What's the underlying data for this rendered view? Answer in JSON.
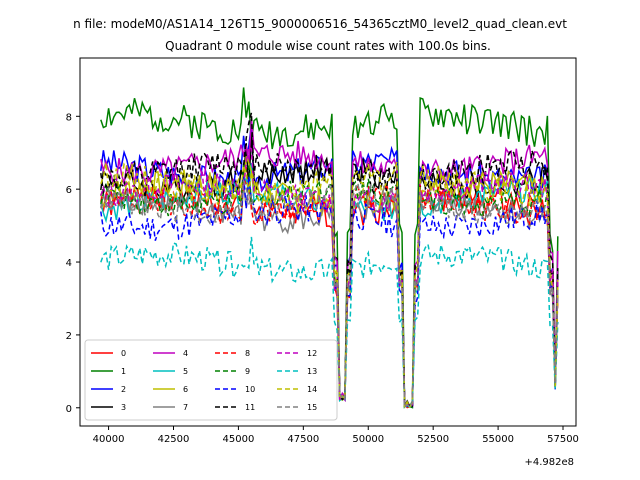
{
  "chart_data": {
    "type": "line",
    "suptitle": "n file: modeM0/AS1A14_126T15_9000006516_54365cztM0_level2_quad_clean.evt",
    "title": "Quadrant 0 module wise count rates with 100.0s bins.",
    "xlabel": "",
    "ylabel": "",
    "x_offset_label": "+4.982e8",
    "xlim": [
      38900,
      58000
    ],
    "ylim": [
      -0.5,
      9.6
    ],
    "x_ticks": [
      "40000",
      "42500",
      "45000",
      "47500",
      "50000",
      "52500",
      "55000",
      "57500"
    ],
    "y_ticks": [
      "0",
      "2",
      "4",
      "6",
      "8"
    ],
    "legend_position": "lower-left",
    "series": [
      {
        "name": "0",
        "color": "#ff0000",
        "dash": "solid",
        "base": 5.5,
        "amp": 0.35,
        "seed": 1
      },
      {
        "name": "1",
        "color": "#008000",
        "dash": "solid",
        "base": 7.8,
        "amp": 0.45,
        "seed": 2
      },
      {
        "name": "2",
        "color": "#0000ff",
        "dash": "solid",
        "base": 6.5,
        "amp": 0.4,
        "seed": 3
      },
      {
        "name": "3",
        "color": "#000000",
        "dash": "solid",
        "base": 6.3,
        "amp": 0.4,
        "seed": 4
      },
      {
        "name": "4",
        "color": "#bf00bf",
        "dash": "solid",
        "base": 6.7,
        "amp": 0.4,
        "seed": 5
      },
      {
        "name": "5",
        "color": "#00bfbf",
        "dash": "solid",
        "base": 5.7,
        "amp": 0.35,
        "seed": 6
      },
      {
        "name": "6",
        "color": "#bfbf00",
        "dash": "solid",
        "base": 5.9,
        "amp": 0.4,
        "seed": 7
      },
      {
        "name": "7",
        "color": "#808080",
        "dash": "solid",
        "base": 5.4,
        "amp": 0.35,
        "seed": 8
      },
      {
        "name": "8",
        "color": "#ff0000",
        "dash": "dashed",
        "base": 5.6,
        "amp": 0.35,
        "seed": 9
      },
      {
        "name": "9",
        "color": "#008000",
        "dash": "dashed",
        "base": 5.8,
        "amp": 0.35,
        "seed": 10
      },
      {
        "name": "10",
        "color": "#0000ff",
        "dash": "dashed",
        "base": 5.2,
        "amp": 0.4,
        "seed": 11
      },
      {
        "name": "11",
        "color": "#000000",
        "dash": "dashed",
        "base": 6.5,
        "amp": 0.4,
        "seed": 12
      },
      {
        "name": "12",
        "color": "#bf00bf",
        "dash": "dashed",
        "base": 5.9,
        "amp": 0.35,
        "seed": 13
      },
      {
        "name": "13",
        "color": "#00bfbf",
        "dash": "dashed",
        "base": 3.95,
        "amp": 0.35,
        "seed": 14
      },
      {
        "name": "14",
        "color": "#bfbf00",
        "dash": "dashed",
        "base": 6.1,
        "amp": 0.4,
        "seed": 15
      },
      {
        "name": "15",
        "color": "#808080",
        "dash": "dashed",
        "base": 5.6,
        "amp": 0.35,
        "seed": 16
      }
    ],
    "x_start": 39700,
    "x_end": 57300,
    "bin_size": 100,
    "dips": [
      {
        "start": 48800,
        "end": 49200,
        "min": 0.2
      },
      {
        "start": 51300,
        "end": 51800,
        "min": 0.0
      },
      {
        "start": 57100,
        "end": 57300,
        "min": 0.5
      }
    ]
  }
}
